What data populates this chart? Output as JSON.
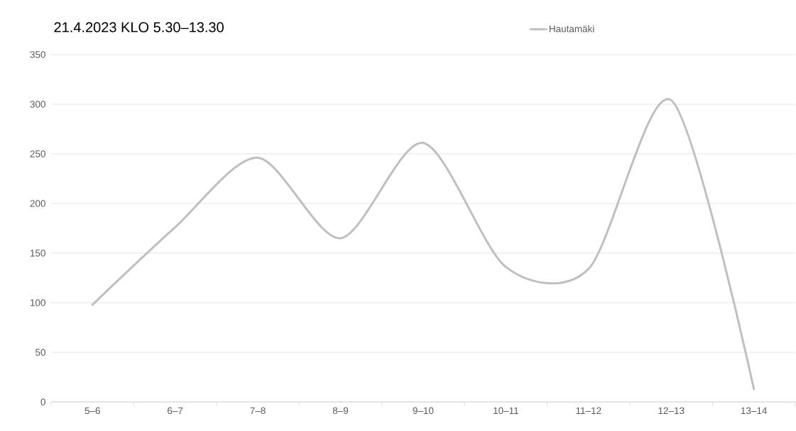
{
  "chart_data": {
    "type": "line",
    "title": "21.4.2023 KLO 5.30–13.30",
    "categories": [
      "5–6",
      "6–7",
      "7–8",
      "8–9",
      "9–10",
      "10–11",
      "11–12",
      "12–13",
      "13–14"
    ],
    "series": [
      {
        "name": "Hautamäki",
        "color": "#bfbfbf",
        "values": [
          98,
          176,
          246,
          165,
          261,
          136,
          134,
          304,
          13
        ]
      }
    ],
    "ylim": [
      0,
      350
    ],
    "yticks": [
      0,
      50,
      100,
      150,
      200,
      250,
      300,
      350
    ],
    "grid": "y",
    "legend": "top right"
  }
}
